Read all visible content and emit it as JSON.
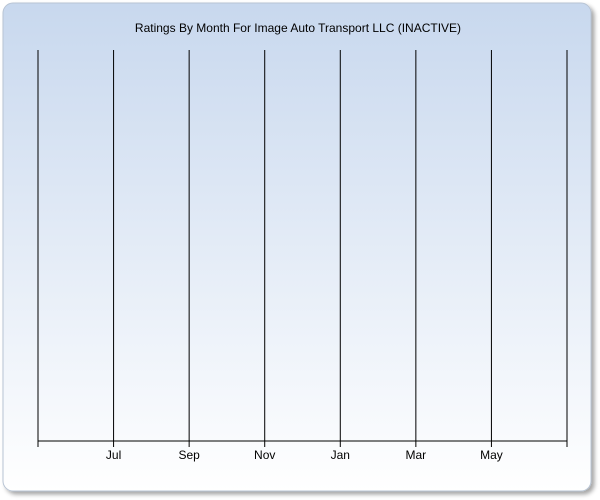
{
  "chart_data": {
    "type": "line",
    "title": "Ratings By Month For Image Auto Transport LLC (INACTIVE)",
    "categories": [
      null,
      "Jul",
      "Sep",
      "Nov",
      "Jan",
      "Mar",
      "May",
      null
    ],
    "grid": true
  }
}
